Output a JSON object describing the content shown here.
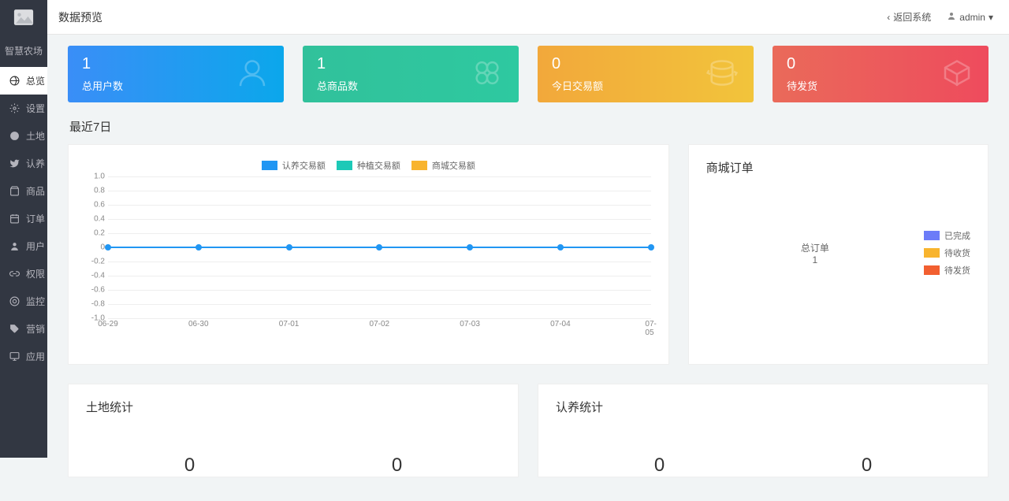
{
  "header": {
    "title": "数据预览",
    "back": "返回系统",
    "user": "admin"
  },
  "sidebar": {
    "brand": "智慧农场",
    "items": [
      {
        "label": "总览",
        "active": true
      },
      {
        "label": "设置"
      },
      {
        "label": "土地"
      },
      {
        "label": "认养"
      },
      {
        "label": "商品"
      },
      {
        "label": "订单"
      },
      {
        "label": "用户"
      },
      {
        "label": "权限"
      },
      {
        "label": "监控"
      },
      {
        "label": "营销"
      },
      {
        "label": "应用"
      }
    ]
  },
  "cards": [
    {
      "value": "1",
      "label": "总用户数"
    },
    {
      "value": "1",
      "label": "总商品数"
    },
    {
      "value": "0",
      "label": "今日交易额"
    },
    {
      "value": "0",
      "label": "待发货"
    }
  ],
  "recent_title": "最近7日",
  "line_chart": {
    "legend": [
      {
        "label": "认养交易额",
        "color": "#2196f3"
      },
      {
        "label": "种植交易额",
        "color": "#1dc9b7"
      },
      {
        "label": "商城交易额",
        "color": "#f8b42e"
      }
    ],
    "yticks": [
      "1.0",
      "0.8",
      "0.6",
      "0.4",
      "0.2",
      "0",
      "-0.2",
      "-0.4",
      "-0.6",
      "-0.8",
      "-1.0"
    ],
    "xlabels": [
      "06-29",
      "06-30",
      "07-01",
      "07-02",
      "07-03",
      "07-04",
      "07-05"
    ],
    "values": [
      0,
      0,
      0,
      0,
      0,
      0,
      0
    ],
    "line_color": "#2196f3",
    "grid_color": "#eeeeee"
  },
  "pie": {
    "title": "商城订单",
    "center_label": "总订单",
    "center_value": "1",
    "legend": [
      {
        "label": "已完成",
        "color": "#6c7cf8"
      },
      {
        "label": "待收货",
        "color": "#f8b42e"
      },
      {
        "label": "待发货",
        "color": "#f25f30"
      }
    ]
  },
  "land": {
    "title": "土地统计",
    "stats": [
      {
        "value": "0"
      },
      {
        "value": "0"
      }
    ]
  },
  "adopt": {
    "title": "认养统计",
    "stats": [
      {
        "value": "0"
      },
      {
        "value": "0"
      }
    ]
  }
}
